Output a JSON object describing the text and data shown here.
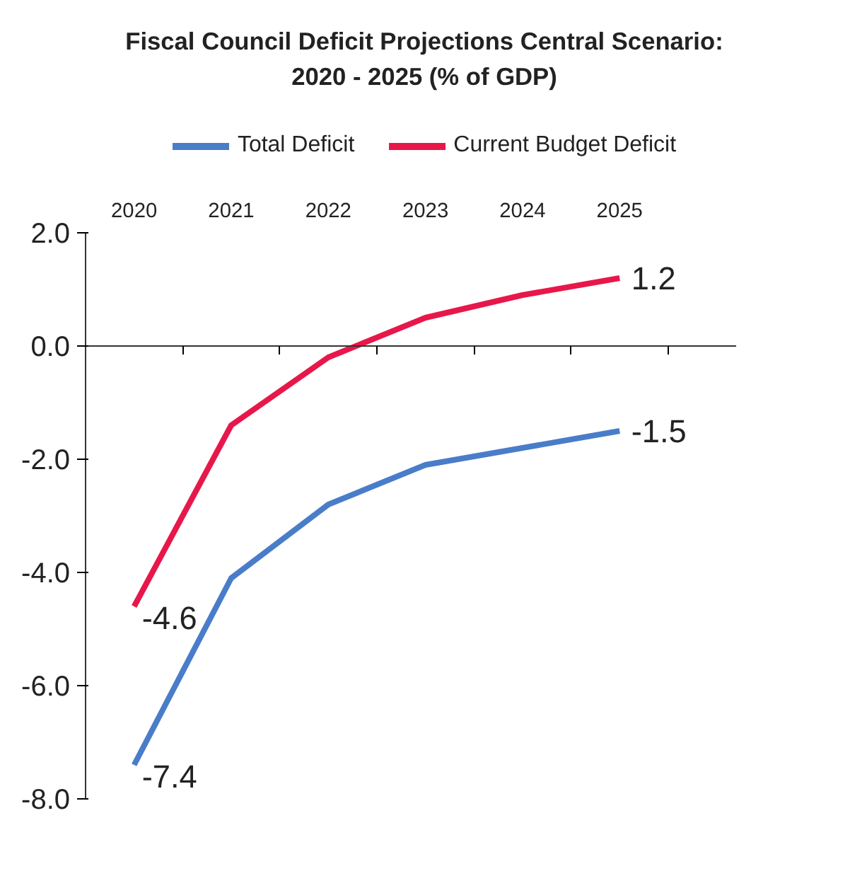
{
  "chart_data": {
    "type": "line",
    "title": "Fiscal Council Deficit Projections Central Scenario:\n2020 - 2025 (% of GDP)",
    "categories": [
      "2020",
      "2021",
      "2022",
      "2023",
      "2024",
      "2025"
    ],
    "series": [
      {
        "name": "Total Deficit",
        "color": "#4a7dc9",
        "values": [
          -7.4,
          -4.1,
          -2.8,
          -2.1,
          -1.8,
          -1.5
        ],
        "value_labels": [
          "-7.4",
          null,
          null,
          null,
          null,
          "-1.5"
        ]
      },
      {
        "name": "Current Budget Deficit",
        "color": "#e8174a",
        "values": [
          -4.6,
          -1.4,
          -0.2,
          0.5,
          0.9,
          1.2
        ],
        "value_labels": [
          "-4.6",
          null,
          null,
          null,
          null,
          "1.2"
        ]
      }
    ],
    "ylim": [
      -8.0,
      2.0
    ],
    "yticks": [
      {
        "value": 2,
        "label": "2.0"
      },
      {
        "value": 0,
        "label": "0.0"
      },
      {
        "value": -2,
        "label": "-2.0"
      },
      {
        "value": -4,
        "label": "-4.0"
      },
      {
        "value": -6,
        "label": "-6.0"
      },
      {
        "value": -8,
        "label": "-8.0"
      }
    ],
    "ref_lines": [
      {
        "axis": "y",
        "value": 0
      }
    ],
    "grid": false,
    "legend": "top",
    "marker": "none",
    "line_style": "solid"
  }
}
